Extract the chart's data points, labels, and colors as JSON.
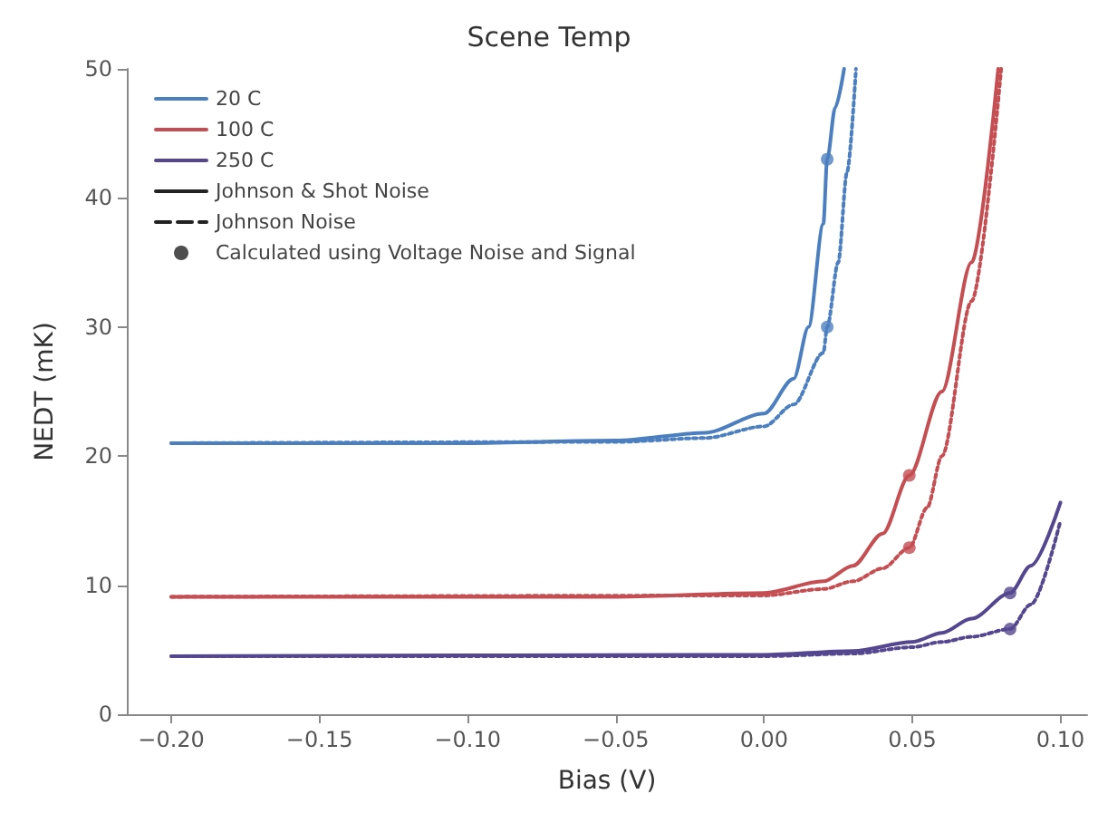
{
  "chart_data": {
    "type": "line",
    "title": "Scene Temp",
    "xlabel": "Bias (V)",
    "ylabel": "NEDT (mK)",
    "xlim": [
      -0.215,
      0.109
    ],
    "ylim": [
      0,
      50
    ],
    "xticks": [
      {
        "value": -0.2,
        "label": "−0.20"
      },
      {
        "value": -0.15,
        "label": "−0.15"
      },
      {
        "value": -0.1,
        "label": "−0.10"
      },
      {
        "value": -0.05,
        "label": "−0.05"
      },
      {
        "value": 0,
        "label": "0.00"
      },
      {
        "value": 0.05,
        "label": "0.05"
      },
      {
        "value": 0.1,
        "label": "0.10"
      }
    ],
    "yticks": [
      0,
      10,
      20,
      30,
      40,
      50
    ],
    "grid": false,
    "legend": "top left",
    "marker": "none",
    "series": [
      {
        "name": "20 C",
        "color": "#4c7fbf",
        "line_style": "solid",
        "x": [
          -0.2,
          -0.1,
          -0.05,
          -0.02,
          0,
          0.01,
          0.015,
          0.02,
          0.0213,
          0.024,
          0.027
        ],
        "values": [
          21,
          21,
          21.2,
          21.8,
          23.3,
          26,
          30,
          38,
          43,
          47,
          50
        ]
      },
      {
        "name": "100 C",
        "color": "#c44e52",
        "line_style": "solid",
        "x": [
          -0.2,
          -0.05,
          0,
          0.02,
          0.03,
          0.04,
          0.049,
          0.06,
          0.07,
          0.079
        ],
        "values": [
          9.1,
          9.1,
          9.4,
          10.3,
          11.5,
          14,
          18.5,
          25,
          35,
          50
        ]
      },
      {
        "name": "250 C",
        "color": "#55478f",
        "line_style": "solid",
        "x": [
          -0.2,
          0,
          0.03,
          0.05,
          0.06,
          0.07,
          0.083,
          0.09,
          0.1
        ],
        "values": [
          4.5,
          4.6,
          4.9,
          5.6,
          6.3,
          7.4,
          9.4,
          11.5,
          16.4
        ]
      },
      {
        "name": "Johnson & Shot Noise",
        "color": "#222222",
        "line_style": "solid"
      },
      {
        "name": "Johnson Noise",
        "color": "#222222",
        "line_style": "dashed"
      },
      {
        "name": "Calculated using Voltage Noise and Signal",
        "color": "#222222",
        "type": "scatter",
        "marker": "circle"
      },
      {
        "color": "#4c7fbf",
        "line_style": "dotted",
        "x": [
          -0.2,
          -0.05,
          -0.02,
          0,
          0.01,
          0.02,
          0.0213,
          0.025,
          0.028,
          0.031
        ],
        "values": [
          21,
          21.1,
          21.4,
          22.3,
          24,
          28,
          30,
          35,
          42,
          50
        ]
      },
      {
        "color": "#c44e52",
        "line_style": "dotted",
        "x": [
          -0.2,
          0,
          0.02,
          0.03,
          0.04,
          0.049,
          0.055,
          0.06,
          0.07,
          0.08
        ],
        "values": [
          9.1,
          9.2,
          9.7,
          10.3,
          11.3,
          12.9,
          16,
          20,
          32,
          50
        ]
      },
      {
        "color": "#55478f",
        "line_style": "dotted",
        "x": [
          -0.2,
          0,
          0.03,
          0.05,
          0.06,
          0.07,
          0.083,
          0.09,
          0.1
        ],
        "values": [
          4.5,
          4.5,
          4.7,
          5.2,
          5.6,
          6,
          6.6,
          8.5,
          15
        ]
      },
      {
        "color": "#4c7fbf",
        "type": "scatter",
        "marker": "circle",
        "x": [
          0.0213,
          0.0213
        ],
        "values": [
          43,
          30
        ]
      },
      {
        "color": "#c44e52",
        "type": "scatter",
        "marker": "circle",
        "x": [
          0.049,
          0.049
        ],
        "values": [
          18.5,
          12.9
        ]
      },
      {
        "color": "#55478f",
        "type": "scatter",
        "marker": "circle",
        "x": [
          0.083,
          0.083
        ],
        "values": [
          9.4,
          6.6
        ]
      }
    ]
  }
}
